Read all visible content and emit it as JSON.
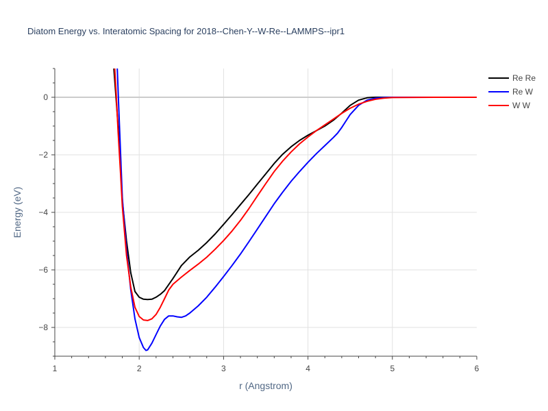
{
  "chart_data": {
    "type": "line",
    "title": "Diatom Energy vs. Interatomic Spacing for 2018--Chen-Y--W-Re--LAMMPS--ipr1",
    "xlabel": "r (Angstrom)",
    "ylabel": "Energy (eV)",
    "xlim": [
      1,
      6
    ],
    "ylim": [
      -9,
      1
    ],
    "xticks": [
      1,
      2,
      3,
      4,
      5,
      6
    ],
    "xtick_labels": [
      "1",
      "2",
      "3",
      "4",
      "5",
      "6"
    ],
    "yticks": [
      0,
      -2,
      -4,
      -6,
      -8
    ],
    "ytick_labels": [
      "0",
      "−2",
      "−4",
      "−6",
      "−8"
    ],
    "grid": true,
    "legend_position": "top-right",
    "series": [
      {
        "name": "Re Re",
        "color": "#000000",
        "x": [
          1.7,
          1.72,
          1.75,
          1.78,
          1.8,
          1.85,
          1.9,
          1.95,
          2.0,
          2.05,
          2.1,
          2.15,
          2.2,
          2.25,
          2.3,
          2.4,
          2.5,
          2.6,
          2.7,
          2.8,
          2.9,
          3.0,
          3.1,
          3.2,
          3.3,
          3.4,
          3.5,
          3.6,
          3.7,
          3.8,
          3.9,
          4.0,
          4.1,
          4.2,
          4.3,
          4.4,
          4.5,
          4.6,
          4.7,
          4.75,
          4.8,
          4.9,
          5.0,
          5.5,
          6.0
        ],
        "y": [
          1.0,
          0.2,
          -1.0,
          -2.5,
          -3.6,
          -5.0,
          -6.1,
          -6.75,
          -6.95,
          -7.02,
          -7.03,
          -7.02,
          -6.95,
          -6.85,
          -6.72,
          -6.3,
          -5.85,
          -5.55,
          -5.32,
          -5.05,
          -4.75,
          -4.42,
          -4.08,
          -3.73,
          -3.38,
          -3.02,
          -2.66,
          -2.3,
          -1.98,
          -1.72,
          -1.5,
          -1.32,
          -1.16,
          -1.0,
          -0.8,
          -0.55,
          -0.28,
          -0.1,
          -0.02,
          -0.005,
          0,
          0,
          0,
          0,
          0
        ]
      },
      {
        "name": "Re W",
        "color": "#0000ff",
        "x": [
          1.74,
          1.76,
          1.78,
          1.8,
          1.85,
          1.9,
          1.95,
          2.0,
          2.05,
          2.08,
          2.1,
          2.15,
          2.2,
          2.25,
          2.3,
          2.35,
          2.4,
          2.45,
          2.5,
          2.55,
          2.6,
          2.7,
          2.8,
          2.9,
          3.0,
          3.1,
          3.2,
          3.3,
          3.4,
          3.5,
          3.6,
          3.7,
          3.8,
          3.9,
          4.0,
          4.1,
          4.2,
          4.3,
          4.35,
          4.4,
          4.5,
          4.6,
          4.7,
          4.8,
          4.9,
          5.0,
          5.5,
          6.0
        ],
        "y": [
          1.0,
          -0.5,
          -2.0,
          -3.5,
          -5.3,
          -6.7,
          -7.7,
          -8.35,
          -8.7,
          -8.8,
          -8.78,
          -8.55,
          -8.25,
          -7.95,
          -7.72,
          -7.6,
          -7.6,
          -7.63,
          -7.65,
          -7.6,
          -7.5,
          -7.25,
          -6.95,
          -6.6,
          -6.23,
          -5.85,
          -5.45,
          -5.02,
          -4.58,
          -4.14,
          -3.7,
          -3.3,
          -2.92,
          -2.58,
          -2.26,
          -1.96,
          -1.68,
          -1.4,
          -1.25,
          -1.05,
          -0.6,
          -0.28,
          -0.1,
          -0.03,
          -0.01,
          0,
          0,
          0
        ]
      },
      {
        "name": "W W",
        "color": "#ff0000",
        "x": [
          1.71,
          1.73,
          1.75,
          1.78,
          1.8,
          1.85,
          1.9,
          1.95,
          2.0,
          2.05,
          2.1,
          2.15,
          2.2,
          2.25,
          2.3,
          2.35,
          2.4,
          2.5,
          2.6,
          2.7,
          2.8,
          2.9,
          3.0,
          3.1,
          3.2,
          3.3,
          3.4,
          3.5,
          3.6,
          3.7,
          3.8,
          3.9,
          4.0,
          4.1,
          4.2,
          4.3,
          4.4,
          4.5,
          4.6,
          4.7,
          4.8,
          4.9,
          5.0,
          5.5,
          6.0
        ],
        "y": [
          1.0,
          0.0,
          -1.2,
          -2.7,
          -3.8,
          -5.5,
          -6.6,
          -7.3,
          -7.62,
          -7.74,
          -7.76,
          -7.7,
          -7.55,
          -7.3,
          -7.0,
          -6.7,
          -6.5,
          -6.25,
          -6.02,
          -5.8,
          -5.56,
          -5.28,
          -4.98,
          -4.65,
          -4.28,
          -3.87,
          -3.43,
          -3.0,
          -2.58,
          -2.22,
          -1.9,
          -1.62,
          -1.38,
          -1.16,
          -0.96,
          -0.76,
          -0.56,
          -0.38,
          -0.24,
          -0.14,
          -0.07,
          -0.03,
          -0.01,
          0,
          0
        ]
      }
    ]
  }
}
